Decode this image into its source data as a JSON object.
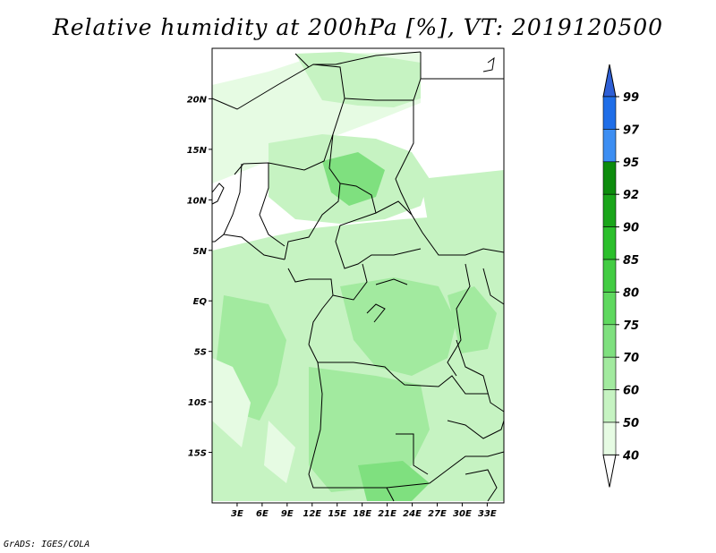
{
  "title": "Relative humidity at 200hPa [%], VT: 2019120500",
  "credit": "GrADS: IGES/COLA",
  "map": {
    "lon_labels": [
      "3E",
      "6E",
      "9E",
      "12E",
      "15E",
      "18E",
      "21E",
      "24E",
      "27E",
      "30E",
      "33E"
    ],
    "lat_labels": [
      "20N",
      "15N",
      "10N",
      "5N",
      "EQ",
      "5S",
      "10S",
      "15S"
    ],
    "lon_range": [
      0,
      35
    ],
    "lat_range": [
      -20,
      25
    ]
  },
  "colorbar": {
    "levels": [
      "99",
      "97",
      "95",
      "92",
      "90",
      "85",
      "80",
      "75",
      "70",
      "60",
      "50",
      "40"
    ],
    "colors": {
      "99-above": "#2e5fd6",
      "97-99": "#1f6ee8",
      "95-97": "#3d8ef2",
      "92-95": "#0d8c0d",
      "90-92": "#1aa51a",
      "85-90": "#2cbf2c",
      "80-85": "#43cc43",
      "75-80": "#5fd85f",
      "70-75": "#7fe07f",
      "60-70": "#a2ea9f",
      "50-60": "#c6f3c2",
      "40-50": "#e6fbe3",
      "below-40": "#ffffff"
    }
  }
}
